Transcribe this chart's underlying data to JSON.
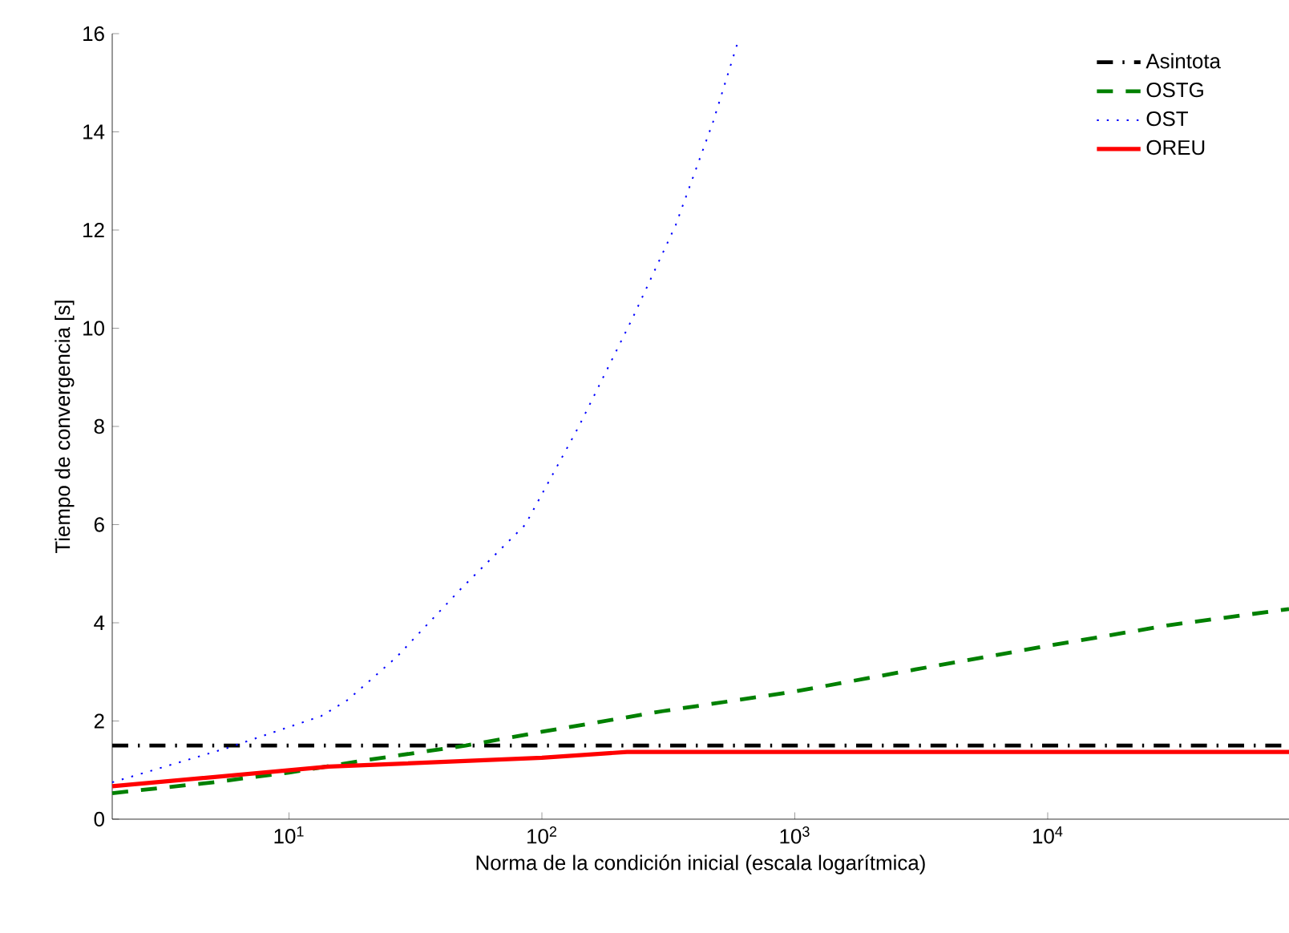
{
  "chart_data": {
    "type": "line",
    "xlabel": "Norma de la condición inicial (escala logarítmica)",
    "ylabel": "Tiempo de convergencia [s]",
    "log": "x",
    "grid": false,
    "legend": "top right",
    "marker": "none",
    "xlim": [
      2,
      90000
    ],
    "ylim": [
      0,
      16
    ],
    "xticks": [
      {
        "value": 10,
        "label": "10$^{1}$"
      },
      {
        "value": 100,
        "label": "10$^{2}$"
      },
      {
        "value": 1000,
        "label": "10$^{3}$"
      },
      {
        "value": 10000,
        "label": "10$^{4}$"
      }
    ],
    "yticks": [
      0,
      2,
      4,
      6,
      8,
      10,
      12,
      14,
      16
    ],
    "series": [
      {
        "name": "Asintota",
        "color": "#000000",
        "line_style": "dashdot",
        "x": [
          2,
          90000
        ],
        "values": [
          1.5,
          1.5
        ]
      },
      {
        "name": "OSTG",
        "color": "#008000",
        "line_style": "dashed",
        "x": [
          2,
          5,
          10,
          20,
          50,
          100,
          300,
          1000,
          3000,
          10000,
          30000,
          90000
        ],
        "values": [
          0.53,
          0.75,
          0.95,
          1.2,
          1.5,
          1.78,
          2.2,
          2.6,
          3.05,
          3.53,
          3.95,
          4.28
        ]
      },
      {
        "name": "OST",
        "color": "#0000ff",
        "line_style": "dotted",
        "x": [
          2,
          5.7,
          13.4,
          17.1,
          26.6,
          48,
          86,
          140,
          228,
          338,
          475,
          593
        ],
        "values": [
          0.75,
          1.45,
          2.1,
          2.43,
          3.3,
          4.7,
          6.0,
          8.0,
          10.2,
          12.1,
          14.2,
          15.8
        ]
      },
      {
        "name": "OREU",
        "color": "#ff0000",
        "line_style": "solid",
        "x": [
          2,
          14.4,
          100,
          217,
          90000
        ],
        "values": [
          0.67,
          1.07,
          1.25,
          1.37,
          1.37
        ]
      }
    ]
  }
}
